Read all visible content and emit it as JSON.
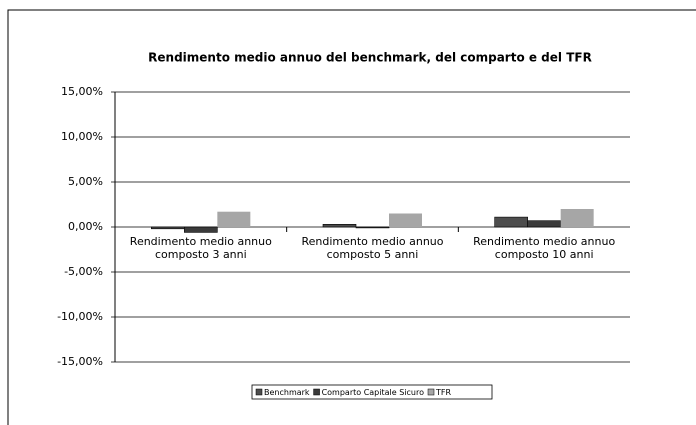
{
  "chart_data": {
    "type": "bar",
    "title": "Rendimento medio annuo del benchmark, del comparto e del TFR",
    "categories": [
      "Rendimento medio annuo composto 3 anni",
      "Rendimento medio annuo composto 5 anni",
      "Rendimento medio annuo composto 10 anni"
    ],
    "series": [
      {
        "name": "Benchmark",
        "color": "#4d4d4d",
        "values": [
          -0.2,
          0.3,
          1.1
        ]
      },
      {
        "name": "Comparto Capitale Sicuro",
        "color": "#3a3a3a",
        "values": [
          -0.6,
          -0.1,
          0.7
        ]
      },
      {
        "name": "TFR",
        "color": "#a6a6a6",
        "values": [
          1.7,
          1.5,
          2.0
        ]
      }
    ],
    "ylim": [
      -15,
      15
    ],
    "yticks": [
      {
        "value": -15,
        "label": "-15,00%"
      },
      {
        "value": -10,
        "label": "-10,00%"
      },
      {
        "value": -5,
        "label": "-5,00%"
      },
      {
        "value": 0,
        "label": "0,00%"
      },
      {
        "value": 5,
        "label": "5,00%"
      },
      {
        "value": 10,
        "label": "10,00%"
      },
      {
        "value": 15,
        "label": "15,00%"
      }
    ],
    "grid": true
  }
}
